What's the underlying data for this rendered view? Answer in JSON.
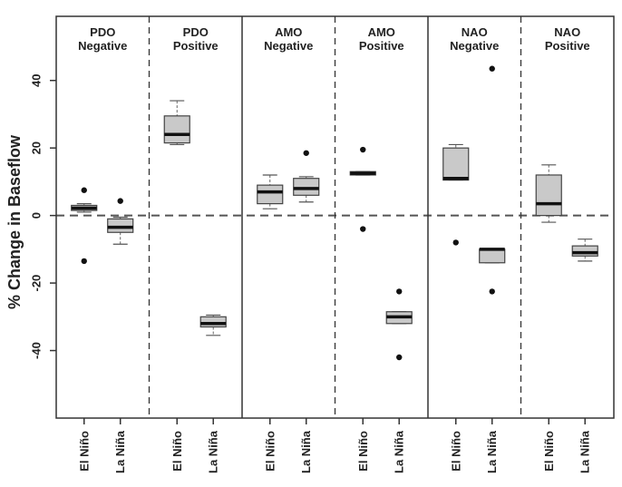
{
  "chart_data": {
    "type": "boxplot",
    "ylabel": "% Change in Baseflow",
    "ylim": [
      -60,
      59
    ],
    "yticks": [
      -40,
      -20,
      0,
      20,
      40
    ],
    "reference_line": 0,
    "box_fill": "#c9c9c9",
    "panels": [
      {
        "label_line1": "PDO",
        "label_line2": "Negative"
      },
      {
        "label_line1": "PDO",
        "label_line2": "Positive"
      },
      {
        "label_line1": "AMO",
        "label_line2": "Negative"
      },
      {
        "label_line1": "AMO",
        "label_line2": "Positive"
      },
      {
        "label_line1": "NAO",
        "label_line2": "Negative"
      },
      {
        "label_line1": "NAO",
        "label_line2": "Positive"
      }
    ],
    "categories": [
      "El Niño",
      "La Niña"
    ],
    "boxes": [
      {
        "panel": 0,
        "category": "El Niño",
        "whisker_low": 1,
        "q1": 1.5,
        "median": 2.2,
        "q3": 3,
        "whisker_high": 3.5,
        "outliers": [
          7.5,
          -13.5
        ]
      },
      {
        "panel": 0,
        "category": "La Niña",
        "whisker_low": -8.5,
        "q1": -5,
        "median": -3.5,
        "q3": -1,
        "whisker_high": -0.5,
        "outliers": [
          4.3
        ]
      },
      {
        "panel": 1,
        "category": "El Niño",
        "whisker_low": 21,
        "q1": 21.5,
        "median": 24,
        "q3": 29.5,
        "whisker_high": 34,
        "outliers": []
      },
      {
        "panel": 1,
        "category": "La Niña",
        "whisker_low": -35.5,
        "q1": -33,
        "median": -32,
        "q3": -30,
        "whisker_high": -29.5,
        "outliers": []
      },
      {
        "panel": 2,
        "category": "El Niño",
        "whisker_low": 2,
        "q1": 3.5,
        "median": 7,
        "q3": 9,
        "whisker_high": 12,
        "outliers": []
      },
      {
        "panel": 2,
        "category": "La Niña",
        "whisker_low": 4,
        "q1": 6,
        "median": 8,
        "q3": 11,
        "whisker_high": 11.5,
        "outliers": [
          18.5
        ]
      },
      {
        "panel": 3,
        "category": "El Niño",
        "whisker_low": 12,
        "q1": 12,
        "median": 12.5,
        "q3": 13,
        "whisker_high": 13,
        "outliers": [
          19.5,
          -4
        ]
      },
      {
        "panel": 3,
        "category": "La Niña",
        "whisker_low": -32,
        "q1": -32,
        "median": -30,
        "q3": -28.5,
        "whisker_high": -28.5,
        "outliers": [
          -22.5,
          -42
        ]
      },
      {
        "panel": 4,
        "category": "El Niño",
        "whisker_low": 10.5,
        "q1": 10.5,
        "median": 11,
        "q3": 20,
        "whisker_high": 21,
        "outliers": [
          -8
        ]
      },
      {
        "panel": 4,
        "category": "La Niña",
        "whisker_low": -14,
        "q1": -14,
        "median": -10,
        "q3": -10,
        "whisker_high": -10,
        "outliers": [
          43.5,
          -22.5
        ]
      },
      {
        "panel": 5,
        "category": "El Niño",
        "whisker_low": -2,
        "q1": 0,
        "median": 3.5,
        "q3": 12,
        "whisker_high": 15,
        "outliers": []
      },
      {
        "panel": 5,
        "category": "La Niña",
        "whisker_low": -13.5,
        "q1": -12,
        "median": -11,
        "q3": -9,
        "whisker_high": -7,
        "outliers": []
      }
    ]
  }
}
